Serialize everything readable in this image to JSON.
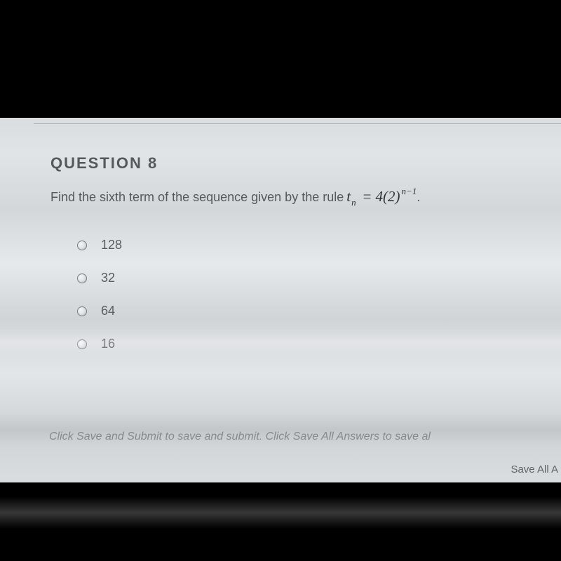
{
  "question": {
    "heading": "QUESTION 8",
    "prompt_prefix": "Find the sixth term of the sequence given by the rule",
    "formula": {
      "lhs_var": "t",
      "lhs_sub": "n",
      "eq": "=",
      "coef": "4",
      "base_open": "(",
      "base": "2",
      "base_close": ")",
      "exp": "n−1"
    },
    "prompt_suffix": "."
  },
  "options": [
    {
      "label": "128"
    },
    {
      "label": "32"
    },
    {
      "label": "64"
    },
    {
      "label": "16"
    }
  ],
  "footer": {
    "instructions": "Click Save and Submit to save and submit. Click Save All Answers to save al",
    "save_all": "Save All A"
  },
  "colors": {
    "page_bg": "#000000",
    "panel_bg": "#dcdfe1",
    "heading": "#55595c",
    "text": "#55595c",
    "formula": "#303438",
    "footer": "#8a8f93",
    "rule": "#a6abaf"
  }
}
